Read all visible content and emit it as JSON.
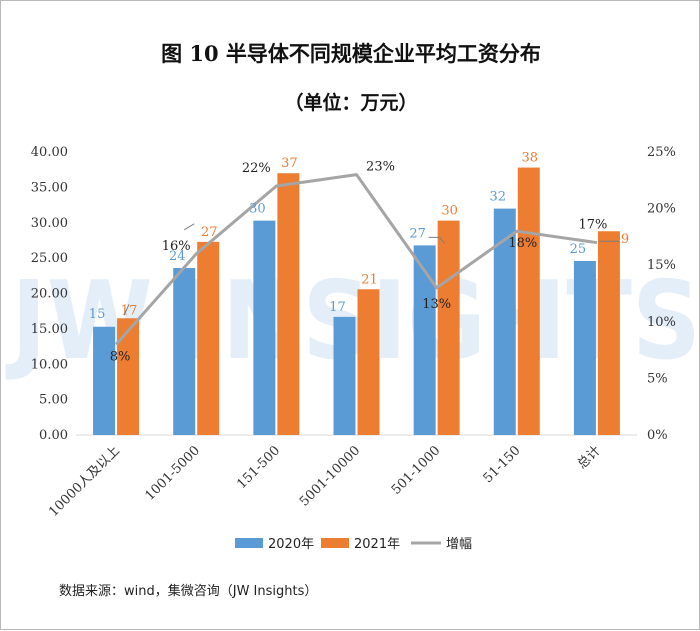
{
  "chart_data": {
    "type": "bar",
    "title": "图 10  半导体不同规模企业平均工资分布",
    "subtitle": "（单位：万元）",
    "categories": [
      "10000人及以上",
      "1001-5000",
      "151-500",
      "5001-10000",
      "501-1000",
      "51-150",
      "总计"
    ],
    "series": [
      {
        "name": "2020年",
        "type": "bar",
        "axis": "left",
        "color": "#5b9bd5",
        "values": [
          15.3,
          23.6,
          30.3,
          16.7,
          26.8,
          32.0,
          24.6
        ],
        "labels": [
          "15",
          "24",
          "30",
          "17",
          "27",
          "32",
          "25"
        ]
      },
      {
        "name": "2021年",
        "type": "bar",
        "axis": "left",
        "color": "#ed7d31",
        "values": [
          16.5,
          27.3,
          37.0,
          20.6,
          30.3,
          37.8,
          28.8
        ],
        "labels": [
          "17",
          "27",
          "37",
          "21",
          "30",
          "38",
          "29"
        ]
      },
      {
        "name": "增幅",
        "type": "line",
        "axis": "right",
        "color": "#a5a5a5",
        "values": [
          8,
          16,
          22,
          23,
          13,
          18,
          17
        ],
        "labels": [
          "8%",
          "16%",
          "22%",
          "23%",
          "13%",
          "18%",
          "17%"
        ]
      }
    ],
    "left_axis": {
      "min": 0,
      "max": 40,
      "step": 5,
      "tick_labels": [
        "0.00",
        "5.00",
        "10.00",
        "15.00",
        "20.00",
        "25.00",
        "30.00",
        "35.00",
        "40.00"
      ]
    },
    "right_axis": {
      "min": 0,
      "max": 25,
      "step": 5,
      "tick_labels": [
        "0%",
        "5%",
        "10%",
        "15%",
        "20%",
        "25%"
      ]
    },
    "grid": false,
    "legend_position": "bottom",
    "watermark": "JW INSIGHTS"
  },
  "source": "数据来源：wind，集微咨询（JW Insights）"
}
